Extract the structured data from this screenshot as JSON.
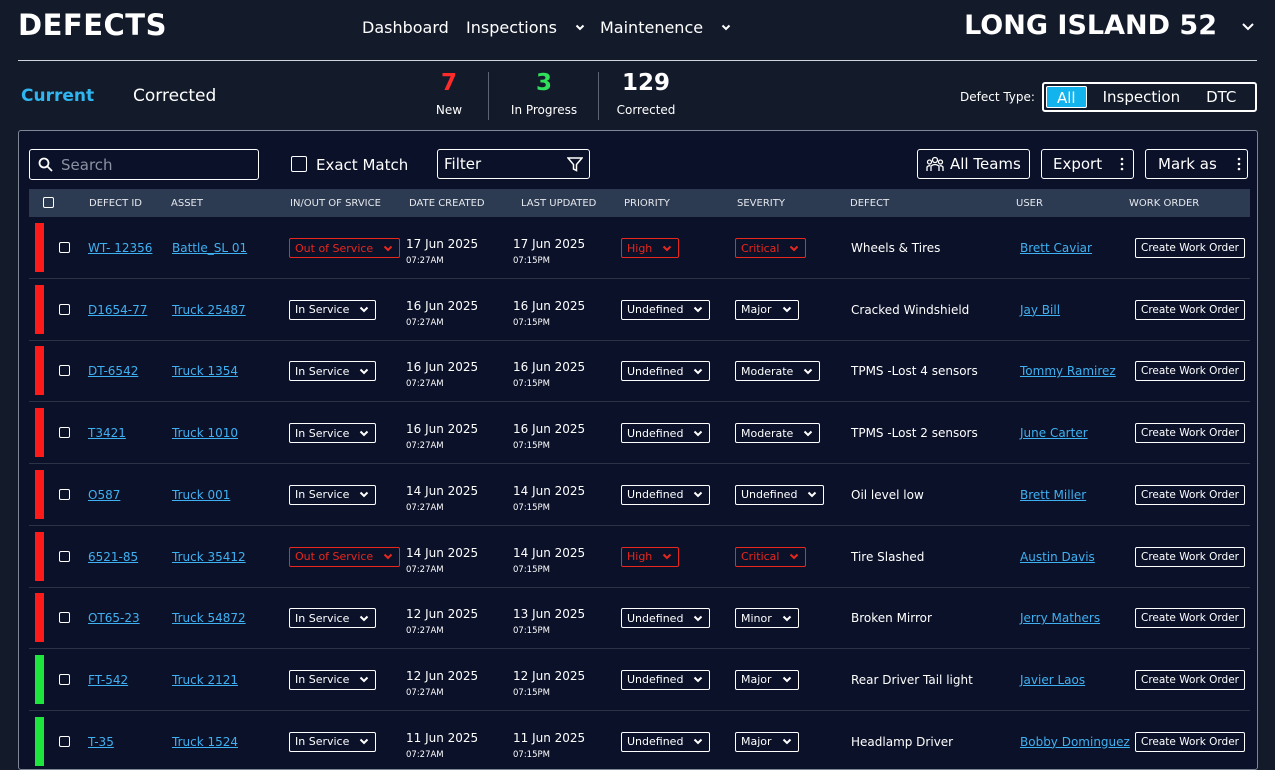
{
  "header": {
    "title": "DEFECTS",
    "nav": [
      "Dashboard",
      "Inspections",
      "Maintenence"
    ],
    "nav_dropdown": [
      false,
      true,
      true
    ],
    "location": "LONG ISLAND 52"
  },
  "tabs": {
    "items": [
      "Current",
      "Corrected"
    ],
    "selected": 0
  },
  "stats": [
    {
      "value": 7,
      "label": "New",
      "color": "#ff2b2b"
    },
    {
      "value": 3,
      "label": "In Progress",
      "color": "#2fe05a"
    },
    {
      "value": 129,
      "label": "Corrected",
      "color": "#ffffff"
    }
  ],
  "defect_type": {
    "label": "Defect Type:",
    "options": [
      "All",
      "Inspection",
      "DTC"
    ],
    "selected": 0
  },
  "toolbar": {
    "search": "Search",
    "exact_match": "Exact Match",
    "filter": "Filter",
    "teams": "All Teams",
    "export": "Export",
    "mark_as": "Mark as"
  },
  "table": {
    "columns": [
      "DEFECT ID",
      "ASSET",
      "IN/OUT OF SRVICE",
      "DATE CREATED",
      "LAST UPDATED",
      "PRIORITY",
      "SEVERITY",
      "DEFECT",
      "USER",
      "WORK ORDER"
    ],
    "rows": [
      {
        "status_color": "#ff1a1a",
        "select_color": "#e8271f",
        "id": "WT- 12356",
        "asset": "Battle_SL 01",
        "service": "Out of Service",
        "created_date": "17 Jun 2025",
        "created_time": "07:27AM",
        "updated_date": "17 Jun 2025",
        "updated_time": "07:15PM",
        "priority": "High",
        "severity": "Critical",
        "defect": "Wheels & Tires",
        "user": "Brett Caviar",
        "action": "Create Work Order"
      },
      {
        "status_color": "#ff1a1a",
        "select_color": "#ffffff",
        "id": "D1654-77",
        "asset": "Truck 25487",
        "service": "In Service",
        "created_date": "16 Jun 2025",
        "created_time": "07:27AM",
        "updated_date": "16 Jun 2025",
        "updated_time": "07:15PM",
        "priority": "Undefined",
        "severity": "Major",
        "defect": "Cracked Windshield",
        "user": "Jay Bill",
        "action": "Create Work Order"
      },
      {
        "status_color": "#ff1a1a",
        "select_color": "#ffffff",
        "id": "DT-6542",
        "asset": "Truck 1354",
        "service": "In Service",
        "created_date": "16 Jun 2025",
        "created_time": "07:27AM",
        "updated_date": "16 Jun 2025",
        "updated_time": "07:15PM",
        "priority": "Undefined",
        "severity": "Moderate",
        "defect": "TPMS -Lost 4 sensors",
        "user": "Tommy Ramirez",
        "action": "Create Work Order"
      },
      {
        "status_color": "#ff1a1a",
        "select_color": "#ffffff",
        "id": "T3421",
        "asset": "Truck 1010",
        "service": "In Service",
        "created_date": "16 Jun 2025",
        "created_time": "07:27AM",
        "updated_date": "16 Jun 2025",
        "updated_time": "07:15PM",
        "priority": "Undefined",
        "severity": "Moderate",
        "defect": "TPMS -Lost 2 sensors",
        "user": "June Carter",
        "action": "Create Work Order"
      },
      {
        "status_color": "#ff1a1a",
        "select_color": "#ffffff",
        "id": "O587",
        "asset": "Truck 001",
        "service": "In Service",
        "created_date": "14 Jun 2025",
        "created_time": "07:27AM",
        "updated_date": "14 Jun 2025",
        "updated_time": "07:15PM",
        "priority": "Undefined",
        "severity": "Undefined",
        "defect": "Oil level low",
        "user": "Brett Miller",
        "action": "Create Work Order"
      },
      {
        "status_color": "#ff1a1a",
        "select_color": "#e8271f",
        "id": "6521-85",
        "asset": "Truck 35412",
        "service": "Out of Service",
        "created_date": "14 Jun 2025",
        "created_time": "07:27AM",
        "updated_date": "14 Jun 2025",
        "updated_time": "07:15PM",
        "priority": "High",
        "severity": "Critical",
        "defect": "Tire Slashed",
        "user": "Austin Davis",
        "action": "Create Work Order"
      },
      {
        "status_color": "#ff1a1a",
        "select_color": "#ffffff",
        "id": "OT65-23",
        "asset": "Truck 54872",
        "service": "In Service",
        "created_date": "12 Jun 2025",
        "created_time": "07:27AM",
        "updated_date": "13 Jun 2025",
        "updated_time": "07:15PM",
        "priority": "Undefined",
        "severity": "Minor",
        "defect": "Broken Mirror",
        "user": "Jerry Mathers",
        "action": "Create Work Order"
      },
      {
        "status_color": "#1ee63c",
        "select_color": "#ffffff",
        "id": "FT-542",
        "asset": "Truck 2121",
        "service": "In Service",
        "created_date": "12 Jun 2025",
        "created_time": "07:27AM",
        "updated_date": "12 Jun 2025",
        "updated_time": "07:15PM",
        "priority": "Undefined",
        "severity": "Major",
        "defect": "Rear Driver Tail light",
        "user": "Javier Laos",
        "action": "Create Work Order"
      },
      {
        "status_color": "#1ee63c",
        "select_color": "#ffffff",
        "id": "T-35",
        "asset": "Truck 1524",
        "service": "In Service",
        "created_date": "11 Jun 2025",
        "created_time": "07:27AM",
        "updated_date": "11 Jun 2025",
        "updated_time": "07:15PM",
        "priority": "Undefined",
        "severity": "Major",
        "defect": "Headlamp Driver",
        "user": "Bobby Dominguez",
        "action": "Create Work Order"
      }
    ]
  }
}
